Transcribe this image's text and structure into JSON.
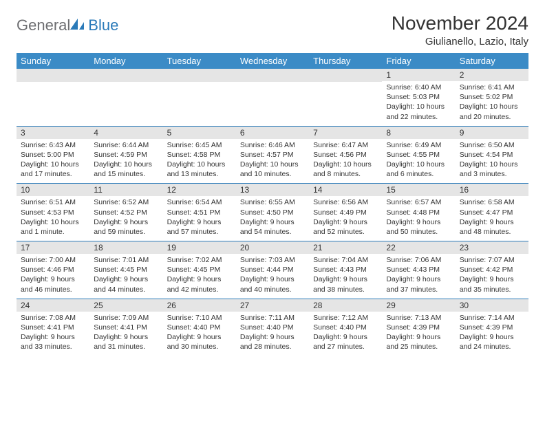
{
  "logo": {
    "text1": "General",
    "text2": "Blue",
    "icon_color": "#2a7ab9",
    "text1_color": "#6d6e71"
  },
  "title": "November 2024",
  "location": "Giulianello, Lazio, Italy",
  "colors": {
    "header_bg": "#3b8bc6",
    "daynum_bg": "#e5e5e5",
    "divider": "#2a7ab9",
    "text": "#333333"
  },
  "weekdays": [
    "Sunday",
    "Monday",
    "Tuesday",
    "Wednesday",
    "Thursday",
    "Friday",
    "Saturday"
  ],
  "weeks": [
    [
      null,
      null,
      null,
      null,
      null,
      {
        "n": "1",
        "sr": "Sunrise: 6:40 AM",
        "ss": "Sunset: 5:03 PM",
        "dl": "Daylight: 10 hours and 22 minutes."
      },
      {
        "n": "2",
        "sr": "Sunrise: 6:41 AM",
        "ss": "Sunset: 5:02 PM",
        "dl": "Daylight: 10 hours and 20 minutes."
      }
    ],
    [
      {
        "n": "3",
        "sr": "Sunrise: 6:43 AM",
        "ss": "Sunset: 5:00 PM",
        "dl": "Daylight: 10 hours and 17 minutes."
      },
      {
        "n": "4",
        "sr": "Sunrise: 6:44 AM",
        "ss": "Sunset: 4:59 PM",
        "dl": "Daylight: 10 hours and 15 minutes."
      },
      {
        "n": "5",
        "sr": "Sunrise: 6:45 AM",
        "ss": "Sunset: 4:58 PM",
        "dl": "Daylight: 10 hours and 13 minutes."
      },
      {
        "n": "6",
        "sr": "Sunrise: 6:46 AM",
        "ss": "Sunset: 4:57 PM",
        "dl": "Daylight: 10 hours and 10 minutes."
      },
      {
        "n": "7",
        "sr": "Sunrise: 6:47 AM",
        "ss": "Sunset: 4:56 PM",
        "dl": "Daylight: 10 hours and 8 minutes."
      },
      {
        "n": "8",
        "sr": "Sunrise: 6:49 AM",
        "ss": "Sunset: 4:55 PM",
        "dl": "Daylight: 10 hours and 6 minutes."
      },
      {
        "n": "9",
        "sr": "Sunrise: 6:50 AM",
        "ss": "Sunset: 4:54 PM",
        "dl": "Daylight: 10 hours and 3 minutes."
      }
    ],
    [
      {
        "n": "10",
        "sr": "Sunrise: 6:51 AM",
        "ss": "Sunset: 4:53 PM",
        "dl": "Daylight: 10 hours and 1 minute."
      },
      {
        "n": "11",
        "sr": "Sunrise: 6:52 AM",
        "ss": "Sunset: 4:52 PM",
        "dl": "Daylight: 9 hours and 59 minutes."
      },
      {
        "n": "12",
        "sr": "Sunrise: 6:54 AM",
        "ss": "Sunset: 4:51 PM",
        "dl": "Daylight: 9 hours and 57 minutes."
      },
      {
        "n": "13",
        "sr": "Sunrise: 6:55 AM",
        "ss": "Sunset: 4:50 PM",
        "dl": "Daylight: 9 hours and 54 minutes."
      },
      {
        "n": "14",
        "sr": "Sunrise: 6:56 AM",
        "ss": "Sunset: 4:49 PM",
        "dl": "Daylight: 9 hours and 52 minutes."
      },
      {
        "n": "15",
        "sr": "Sunrise: 6:57 AM",
        "ss": "Sunset: 4:48 PM",
        "dl": "Daylight: 9 hours and 50 minutes."
      },
      {
        "n": "16",
        "sr": "Sunrise: 6:58 AM",
        "ss": "Sunset: 4:47 PM",
        "dl": "Daylight: 9 hours and 48 minutes."
      }
    ],
    [
      {
        "n": "17",
        "sr": "Sunrise: 7:00 AM",
        "ss": "Sunset: 4:46 PM",
        "dl": "Daylight: 9 hours and 46 minutes."
      },
      {
        "n": "18",
        "sr": "Sunrise: 7:01 AM",
        "ss": "Sunset: 4:45 PM",
        "dl": "Daylight: 9 hours and 44 minutes."
      },
      {
        "n": "19",
        "sr": "Sunrise: 7:02 AM",
        "ss": "Sunset: 4:45 PM",
        "dl": "Daylight: 9 hours and 42 minutes."
      },
      {
        "n": "20",
        "sr": "Sunrise: 7:03 AM",
        "ss": "Sunset: 4:44 PM",
        "dl": "Daylight: 9 hours and 40 minutes."
      },
      {
        "n": "21",
        "sr": "Sunrise: 7:04 AM",
        "ss": "Sunset: 4:43 PM",
        "dl": "Daylight: 9 hours and 38 minutes."
      },
      {
        "n": "22",
        "sr": "Sunrise: 7:06 AM",
        "ss": "Sunset: 4:43 PM",
        "dl": "Daylight: 9 hours and 37 minutes."
      },
      {
        "n": "23",
        "sr": "Sunrise: 7:07 AM",
        "ss": "Sunset: 4:42 PM",
        "dl": "Daylight: 9 hours and 35 minutes."
      }
    ],
    [
      {
        "n": "24",
        "sr": "Sunrise: 7:08 AM",
        "ss": "Sunset: 4:41 PM",
        "dl": "Daylight: 9 hours and 33 minutes."
      },
      {
        "n": "25",
        "sr": "Sunrise: 7:09 AM",
        "ss": "Sunset: 4:41 PM",
        "dl": "Daylight: 9 hours and 31 minutes."
      },
      {
        "n": "26",
        "sr": "Sunrise: 7:10 AM",
        "ss": "Sunset: 4:40 PM",
        "dl": "Daylight: 9 hours and 30 minutes."
      },
      {
        "n": "27",
        "sr": "Sunrise: 7:11 AM",
        "ss": "Sunset: 4:40 PM",
        "dl": "Daylight: 9 hours and 28 minutes."
      },
      {
        "n": "28",
        "sr": "Sunrise: 7:12 AM",
        "ss": "Sunset: 4:40 PM",
        "dl": "Daylight: 9 hours and 27 minutes."
      },
      {
        "n": "29",
        "sr": "Sunrise: 7:13 AM",
        "ss": "Sunset: 4:39 PM",
        "dl": "Daylight: 9 hours and 25 minutes."
      },
      {
        "n": "30",
        "sr": "Sunrise: 7:14 AM",
        "ss": "Sunset: 4:39 PM",
        "dl": "Daylight: 9 hours and 24 minutes."
      }
    ]
  ]
}
